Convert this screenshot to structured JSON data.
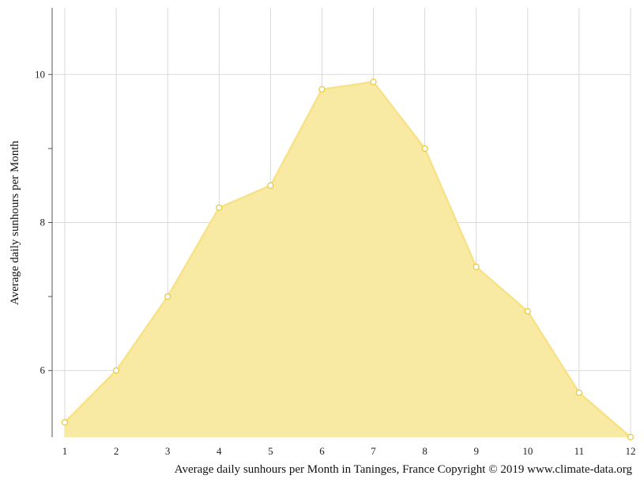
{
  "chart_data": {
    "type": "area",
    "x": [
      1,
      2,
      3,
      4,
      5,
      6,
      7,
      8,
      9,
      10,
      11,
      12
    ],
    "series": [
      {
        "values": [
          5.3,
          6.0,
          7.0,
          8.2,
          8.5,
          9.8,
          9.9,
          9.0,
          7.4,
          6.8,
          5.7,
          5.1
        ]
      }
    ],
    "x_tick_labels": [
      "1",
      "2",
      "3",
      "4",
      "5",
      "6",
      "7",
      "8",
      "9",
      "10",
      "11",
      "12"
    ],
    "y_tick_labels": [
      {
        "value": 6,
        "label": "6"
      },
      {
        "value": 8,
        "label": "8"
      },
      {
        "value": 10,
        "label": "10"
      }
    ],
    "y_minor_ticks": [
      7,
      9
    ],
    "ylabel": "Average daily sunhours per Month",
    "caption": "Average daily sunhours per Month in Taninges, France Copyright © 2019 www.climate-data.org",
    "xlim": [
      1,
      12
    ],
    "ylim": [
      5.1,
      10.9
    ],
    "grid": true,
    "colors": {
      "fill": "#f9eaa3",
      "line": "#f7e287",
      "marker_stroke": "#e8c93a",
      "marker_fill": "#ffffff",
      "grid": "#d9d9d9",
      "axis": "#555555"
    }
  }
}
